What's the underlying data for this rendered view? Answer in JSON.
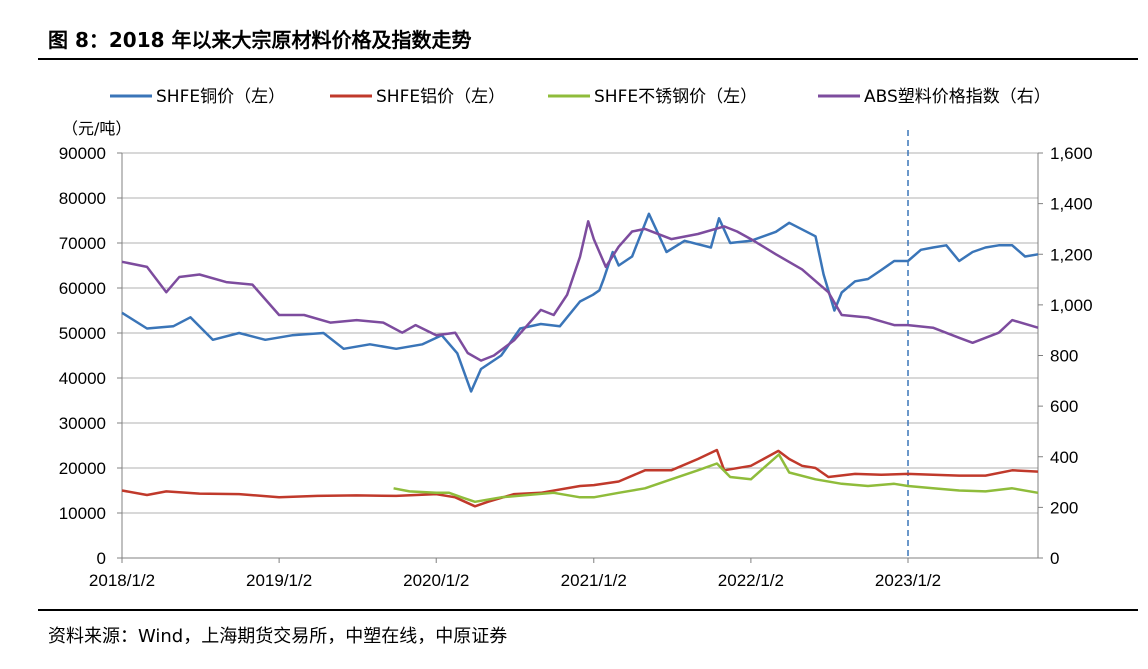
{
  "title": "图 8：2018 年以来大宗原材料价格及指数走势",
  "source": "资料来源：Wind，上海期货交易所，中塑在线，中原证券",
  "chart_data": {
    "type": "line",
    "y_unit_label": "（元/吨）",
    "x_tick_labels": [
      "2018/1/2",
      "2019/1/2",
      "2020/1/2",
      "2021/1/2",
      "2022/1/2",
      "2023/1/2"
    ],
    "x_range": [
      "2018/1/2",
      "2023/10/31"
    ],
    "y_left": {
      "min": 0,
      "max": 90000,
      "step": 10000,
      "tick_labels": [
        "0",
        "10000",
        "20000",
        "30000",
        "40000",
        "50000",
        "60000",
        "70000",
        "80000",
        "90000"
      ]
    },
    "y_right": {
      "min": 0,
      "max": 1600,
      "step": 200,
      "tick_labels": [
        "0",
        "200",
        "400",
        "600",
        "800",
        "1,000",
        "1,200",
        "1,400",
        "1,600"
      ]
    },
    "grid": true,
    "legend_position": "top",
    "dashed_marker_date": "2023/1/2",
    "colors": {
      "copper": "#3a75b8",
      "aluminum": "#c0392b",
      "steel": "#8fbc3b",
      "abs": "#7d4c9e",
      "grid": "#b0b0b0",
      "marker": "#3a75b8"
    },
    "series": [
      {
        "name": "SHFE铜价（左）",
        "axis": "left",
        "color_key": "copper",
        "points": [
          [
            "2018/1/2",
            54500
          ],
          [
            "2018/3/1",
            51000
          ],
          [
            "2018/5/1",
            51500
          ],
          [
            "2018/6/10",
            53500
          ],
          [
            "2018/8/1",
            48500
          ],
          [
            "2018/10/1",
            50000
          ],
          [
            "2018/12/1",
            48500
          ],
          [
            "2019/2/1",
            49500
          ],
          [
            "2019/4/15",
            50000
          ],
          [
            "2019/6/1",
            46500
          ],
          [
            "2019/8/1",
            47500
          ],
          [
            "2019/10/1",
            46500
          ],
          [
            "2019/12/1",
            47500
          ],
          [
            "2020/1/15",
            49500
          ],
          [
            "2020/2/20",
            45500
          ],
          [
            "2020/3/23",
            37000
          ],
          [
            "2020/4/15",
            42000
          ],
          [
            "2020/6/1",
            45000
          ],
          [
            "2020/7/15",
            51000
          ],
          [
            "2020/9/1",
            52000
          ],
          [
            "2020/10/15",
            51500
          ],
          [
            "2020/12/1",
            57000
          ],
          [
            "2020/12/31",
            58500
          ],
          [
            "2021/1/15",
            59500
          ],
          [
            "2021/1/25",
            62000
          ],
          [
            "2021/2/15",
            68000
          ],
          [
            "2021/3/1",
            65000
          ],
          [
            "2021/4/1",
            67000
          ],
          [
            "2021/5/10",
            76500
          ],
          [
            "2021/6/1",
            72000
          ],
          [
            "2021/6/20",
            68000
          ],
          [
            "2021/8/1",
            70500
          ],
          [
            "2021/10/1",
            69000
          ],
          [
            "2021/10/20",
            75500
          ],
          [
            "2021/11/15",
            70000
          ],
          [
            "2022/1/2",
            70500
          ],
          [
            "2022/3/1",
            72500
          ],
          [
            "2022/4/1",
            74500
          ],
          [
            "2022/6/1",
            71500
          ],
          [
            "2022/6/20",
            63000
          ],
          [
            "2022/7/15",
            55000
          ],
          [
            "2022/8/1",
            59000
          ],
          [
            "2022/9/1",
            61500
          ],
          [
            "2022/10/1",
            62000
          ],
          [
            "2022/11/1",
            64000
          ],
          [
            "2022/12/1",
            66000
          ],
          [
            "2023/1/2",
            66000
          ],
          [
            "2023/2/1",
            68500
          ],
          [
            "2023/3/1",
            69000
          ],
          [
            "2023/4/1",
            69500
          ],
          [
            "2023/5/1",
            66000
          ],
          [
            "2023/6/1",
            68000
          ],
          [
            "2023/7/1",
            69000
          ],
          [
            "2023/8/1",
            69500
          ],
          [
            "2023/9/1",
            69500
          ],
          [
            "2023/10/1",
            67000
          ],
          [
            "2023/10/31",
            67500
          ]
        ]
      },
      {
        "name": "SHFE铝价（左）",
        "axis": "left",
        "color_key": "aluminum",
        "points": [
          [
            "2018/1/2",
            15000
          ],
          [
            "2018/3/1",
            14000
          ],
          [
            "2018/4/15",
            14800
          ],
          [
            "2018/7/1",
            14300
          ],
          [
            "2018/10/1",
            14200
          ],
          [
            "2019/1/2",
            13500
          ],
          [
            "2019/4/1",
            13800
          ],
          [
            "2019/7/1",
            13900
          ],
          [
            "2019/10/1",
            13800
          ],
          [
            "2020/1/2",
            14200
          ],
          [
            "2020/2/15",
            13500
          ],
          [
            "2020/4/1",
            11500
          ],
          [
            "2020/5/1",
            12500
          ],
          [
            "2020/7/1",
            14200
          ],
          [
            "2020/9/1",
            14500
          ],
          [
            "2020/12/1",
            16000
          ],
          [
            "2021/1/2",
            16200
          ],
          [
            "2021/3/1",
            17000
          ],
          [
            "2021/5/1",
            19500
          ],
          [
            "2021/7/1",
            19500
          ],
          [
            "2021/9/1",
            22000
          ],
          [
            "2021/10/15",
            24000
          ],
          [
            "2021/11/1",
            19500
          ],
          [
            "2022/1/2",
            20500
          ],
          [
            "2022/3/7",
            23800
          ],
          [
            "2022/4/1",
            22000
          ],
          [
            "2022/5/1",
            20500
          ],
          [
            "2022/6/1",
            20000
          ],
          [
            "2022/7/1",
            18000
          ],
          [
            "2022/9/1",
            18700
          ],
          [
            "2022/11/1",
            18500
          ],
          [
            "2023/1/2",
            18700
          ],
          [
            "2023/3/1",
            18500
          ],
          [
            "2023/5/1",
            18300
          ],
          [
            "2023/7/1",
            18300
          ],
          [
            "2023/9/1",
            19500
          ],
          [
            "2023/10/31",
            19200
          ]
        ]
      },
      {
        "name": "SHFE不锈钢价（左）",
        "axis": "left",
        "color_key": "steel",
        "points": [
          [
            "2019/9/25",
            15500
          ],
          [
            "2019/11/1",
            14800
          ],
          [
            "2020/1/2",
            14500
          ],
          [
            "2020/2/1",
            14500
          ],
          [
            "2020/3/1",
            13500
          ],
          [
            "2020/4/1",
            12500
          ],
          [
            "2020/6/1",
            13500
          ],
          [
            "2020/8/1",
            14000
          ],
          [
            "2020/10/1",
            14500
          ],
          [
            "2020/12/1",
            13500
          ],
          [
            "2021/1/2",
            13500
          ],
          [
            "2021/3/1",
            14500
          ],
          [
            "2021/5/1",
            15500
          ],
          [
            "2021/7/1",
            17500
          ],
          [
            "2021/9/1",
            19500
          ],
          [
            "2021/10/15",
            21000
          ],
          [
            "2021/11/15",
            18000
          ],
          [
            "2022/1/2",
            17500
          ],
          [
            "2022/3/8",
            23000
          ],
          [
            "2022/4/1",
            19000
          ],
          [
            "2022/6/1",
            17500
          ],
          [
            "2022/8/1",
            16500
          ],
          [
            "2022/10/1",
            16000
          ],
          [
            "2022/12/1",
            16500
          ],
          [
            "2023/1/2",
            16000
          ],
          [
            "2023/3/1",
            15500
          ],
          [
            "2023/5/1",
            15000
          ],
          [
            "2023/7/1",
            14800
          ],
          [
            "2023/9/1",
            15500
          ],
          [
            "2023/10/31",
            14500
          ]
        ]
      },
      {
        "name": "ABS塑料价格指数（右）",
        "axis": "right",
        "color_key": "abs",
        "points": [
          [
            "2018/1/2",
            1170
          ],
          [
            "2018/3/1",
            1150
          ],
          [
            "2018/4/15",
            1050
          ],
          [
            "2018/5/15",
            1110
          ],
          [
            "2018/7/1",
            1120
          ],
          [
            "2018/9/1",
            1090
          ],
          [
            "2018/11/1",
            1080
          ],
          [
            "2019/1/2",
            960
          ],
          [
            "2019/3/1",
            960
          ],
          [
            "2019/5/1",
            930
          ],
          [
            "2019/7/1",
            940
          ],
          [
            "2019/9/1",
            930
          ],
          [
            "2019/10/15",
            890
          ],
          [
            "2019/11/15",
            920
          ],
          [
            "2020/1/2",
            880
          ],
          [
            "2020/2/15",
            890
          ],
          [
            "2020/3/15",
            810
          ],
          [
            "2020/4/15",
            780
          ],
          [
            "2020/5/15",
            800
          ],
          [
            "2020/7/1",
            860
          ],
          [
            "2020/9/1",
            980
          ],
          [
            "2020/10/1",
            960
          ],
          [
            "2020/11/1",
            1040
          ],
          [
            "2020/12/1",
            1190
          ],
          [
            "2020/12/20",
            1330
          ],
          [
            "2021/1/2",
            1260
          ],
          [
            "2021/1/30",
            1150
          ],
          [
            "2021/3/1",
            1230
          ],
          [
            "2021/4/1",
            1290
          ],
          [
            "2021/5/1",
            1300
          ],
          [
            "2021/7/1",
            1260
          ],
          [
            "2021/9/1",
            1280
          ],
          [
            "2021/11/1",
            1310
          ],
          [
            "2021/12/1",
            1290
          ],
          [
            "2022/1/2",
            1260
          ],
          [
            "2022/3/1",
            1200
          ],
          [
            "2022/5/1",
            1140
          ],
          [
            "2022/7/1",
            1050
          ],
          [
            "2022/8/1",
            960
          ],
          [
            "2022/10/1",
            950
          ],
          [
            "2022/12/1",
            920
          ],
          [
            "2023/1/2",
            920
          ],
          [
            "2023/3/1",
            910
          ],
          [
            "2023/5/1",
            870
          ],
          [
            "2023/6/1",
            850
          ],
          [
            "2023/8/1",
            890
          ],
          [
            "2023/9/1",
            940
          ],
          [
            "2023/10/31",
            910
          ]
        ]
      }
    ]
  }
}
